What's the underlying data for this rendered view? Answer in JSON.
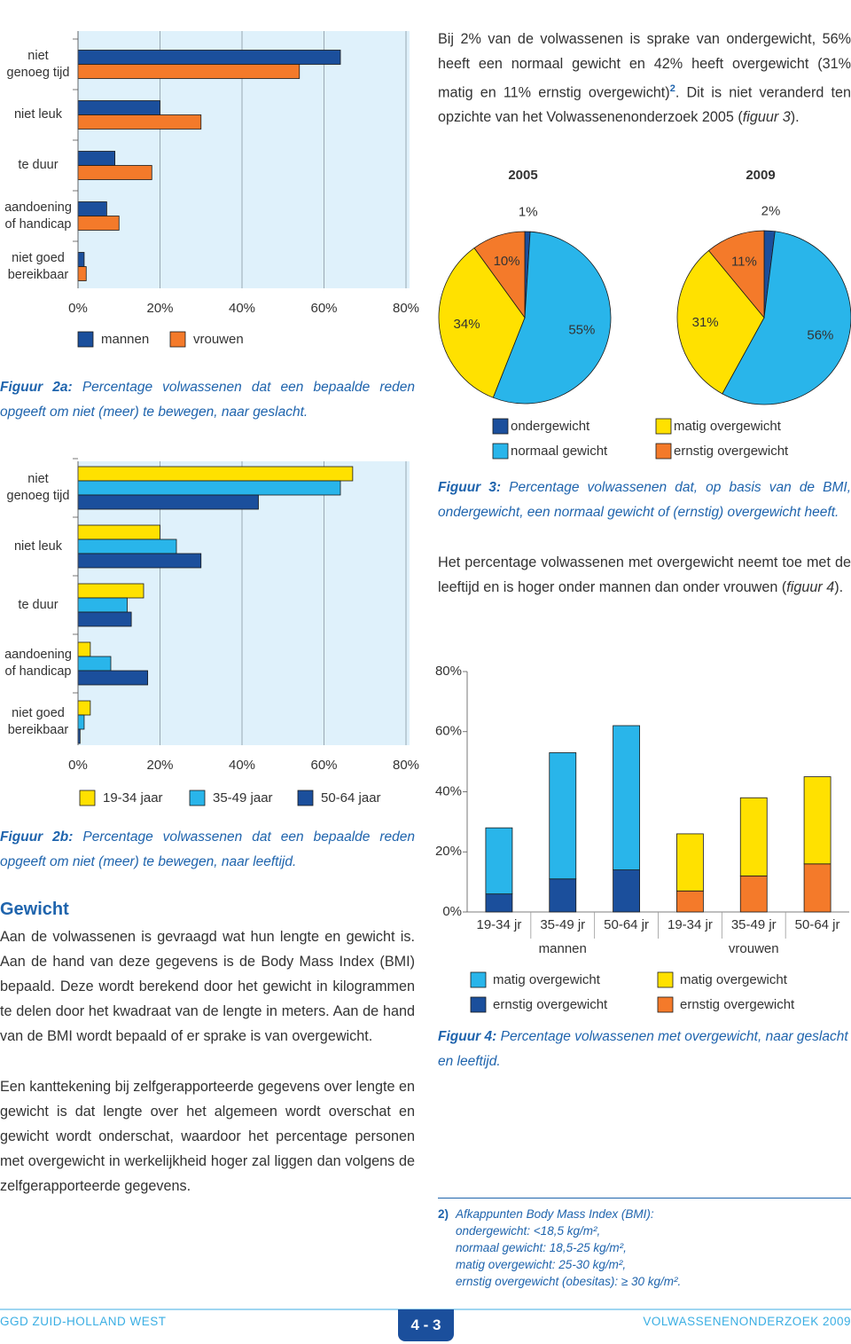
{
  "document": {
    "intro": {
      "text": "Bij 2% van de volwassenen is sprake van ondergewicht, 56% heeft een normaal gewicht en 42% heeft overgewicht (31% matig en 11% ernstig overgewicht)",
      "ref": "2",
      "rest": ". Dit is niet veranderd ten opzichte van het Volwassenenonderzoek 2005 (",
      "fig": "figuur 3",
      "end": ")."
    },
    "paragraph_age": {
      "text": "Het percentage volwassenen met overgewicht neemt toe met de leeftijd en is hoger onder mannen dan onder vrouwen (",
      "fig": "figuur 4",
      "end": ")."
    },
    "section": {
      "heading": "Gewicht",
      "paragraphs": [
        "Aan de volwassenen is gevraagd wat hun lengte en gewicht is. Aan de hand van deze gegevens is de Body Mass Index (BMI) bepaald. Deze wordt berekend door het gewicht in kilogrammen te delen door het kwadraat van de lengte in meters. Aan de hand van de BMI wordt bepaald of er sprake is van overgewicht.",
        "Een kanttekening bij zelfgerapporteerde gegevens over lengte en gewicht is dat lengte over het algemeen wordt overschat en gewicht wordt onderschat, waardoor het percentage personen met overgewicht in werkelijkheid hoger zal liggen dan volgens de zelfgerapporteerde gegevens."
      ]
    },
    "footnote": {
      "number": "2)",
      "lines": [
        "Afkappunten Body Mass Index (BMI):",
        "ondergewicht: <18,5 kg/m²,",
        "normaal gewicht: 18,5-25 kg/m²,",
        "matig overgewicht: 25-30 kg/m²,",
        "ernstig overgewicht (obesitas): ≥ 30 kg/m²."
      ]
    },
    "footer": {
      "left": "GGD ZUID-HOLLAND WEST",
      "page": "4 - 3",
      "right": "VOLWASSENENONDERZOEK 2009"
    }
  },
  "chart_data": [
    {
      "type": "hbar",
      "figure_label": "Figuur 2a:",
      "caption": "Percentage volwassenen dat een bepaalde reden opgeeft om niet (meer) te bewegen, naar geslacht.",
      "categories": [
        "niet\ngenoeg tijd",
        "niet leuk",
        "te duur",
        "aandoening\nof handicap",
        "niet goed\nbereikbaar"
      ],
      "series": [
        {
          "name": "mannen",
          "color": "#1b4f9c",
          "values": [
            64,
            20,
            9,
            7,
            1.5
          ]
        },
        {
          "name": "vrouwen",
          "color": "#f47a2a",
          "values": [
            54,
            30,
            18,
            10,
            2
          ]
        }
      ],
      "xlim": [
        0,
        80
      ],
      "xticks": [
        {
          "value": 0,
          "label": "0%"
        },
        {
          "value": 20,
          "label": "20%"
        },
        {
          "value": 40,
          "label": "40%"
        },
        {
          "value": 60,
          "label": "60%"
        },
        {
          "value": 80,
          "label": "80%"
        }
      ],
      "grid": true
    },
    {
      "type": "hbar",
      "figure_label": "Figuur 2b:",
      "caption": "Percentage volwassenen dat een bepaalde reden opgeeft om niet (meer) te bewegen, naar leeftijd.",
      "categories": [
        "niet\ngenoeg tijd",
        "niet leuk",
        "te duur",
        "aandoening\nof handicap",
        "niet goed\nbereikbaar"
      ],
      "series": [
        {
          "name": "19-34 jaar",
          "color": "#ffe100",
          "values": [
            67,
            20,
            16,
            3,
            3
          ]
        },
        {
          "name": "35-49 jaar",
          "color": "#29b5ea",
          "values": [
            64,
            24,
            12,
            8,
            1.5
          ]
        },
        {
          "name": "50-64 jaar",
          "color": "#1b4f9c",
          "values": [
            44,
            30,
            13,
            17,
            0.5
          ]
        }
      ],
      "xlim": [
        0,
        80
      ],
      "xticks": [
        {
          "value": 0,
          "label": "0%"
        },
        {
          "value": 20,
          "label": "20%"
        },
        {
          "value": 40,
          "label": "40%"
        },
        {
          "value": 60,
          "label": "60%"
        },
        {
          "value": 80,
          "label": "80%"
        }
      ],
      "grid": true
    },
    {
      "type": "pie",
      "figure_label": "Figuur 3:",
      "caption": "Percentage volwassenen dat, op basis van de BMI, ondergewicht, een normaal gewicht of (ernstig) overgewicht heeft.",
      "categories": [
        "ondergewicht",
        "normaal gewicht",
        "matig overgewicht",
        "ernstig overgewicht"
      ],
      "colors": [
        "#1b4f9c",
        "#29b5ea",
        "#ffe100",
        "#f47a2a"
      ],
      "pies": [
        {
          "title": "2005",
          "values": [
            1,
            55,
            34,
            10
          ],
          "value_labels": [
            "1%",
            "55%",
            "34%",
            "10%"
          ]
        },
        {
          "title": "2009",
          "values": [
            2,
            56,
            31,
            11
          ],
          "value_labels": [
            "2%",
            "56%",
            "31%",
            "11%"
          ]
        }
      ]
    },
    {
      "type": "stacked-bar",
      "figure_label": "Figuur 4:",
      "caption": "Percentage volwassenen met overgewicht, naar geslacht en leeftijd.",
      "ylim": [
        0,
        80
      ],
      "yticks": [
        {
          "value": 0,
          "label": "0%"
        },
        {
          "value": 20,
          "label": "20%"
        },
        {
          "value": 40,
          "label": "40%"
        },
        {
          "value": 60,
          "label": "60%"
        },
        {
          "value": 80,
          "label": "80%"
        }
      ],
      "groups": [
        {
          "label": "mannen",
          "categories": [
            "19-34 jr",
            "35-49 jr",
            "50-64 jr"
          ],
          "series": [
            {
              "name": "matig overgewicht",
              "color": "#29b5ea",
              "values": [
                22,
                42,
                48
              ]
            },
            {
              "name": "ernstig overgewicht",
              "color": "#1b4f9c",
              "values": [
                6,
                11,
                14
              ]
            }
          ]
        },
        {
          "label": "vrouwen",
          "categories": [
            "19-34 jr",
            "35-49 jr",
            "50-64 jr"
          ],
          "series": [
            {
              "name": "matig overgewicht",
              "color": "#ffe100",
              "values": [
                19,
                26,
                29
              ]
            },
            {
              "name": "ernstig overgewicht",
              "color": "#f47a2a",
              "values": [
                7,
                12,
                16
              ]
            }
          ]
        }
      ]
    }
  ]
}
